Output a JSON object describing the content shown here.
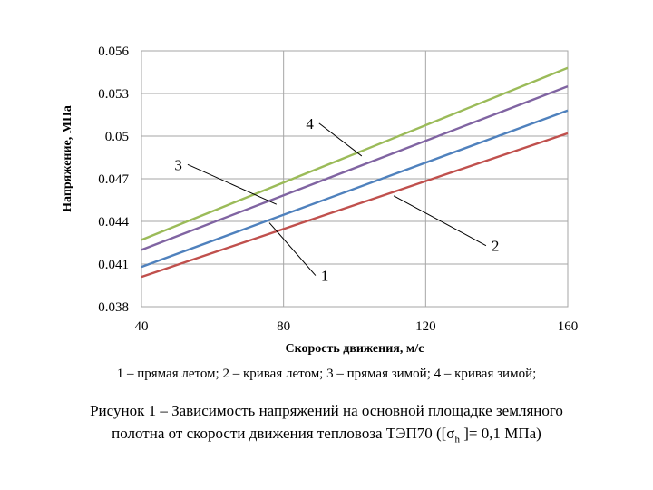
{
  "chart_data": {
    "type": "line",
    "xlabel": "Скорость движения, м/с",
    "ylabel": "Напряжение, МПа",
    "xlim": [
      40,
      160
    ],
    "ylim": [
      0.038,
      0.056
    ],
    "x_ticks": [
      "40",
      "80",
      "120",
      "160"
    ],
    "y_ticks": [
      "0.038",
      "0.041",
      "0.044",
      "0.047",
      "0.05",
      "0.053",
      "0.056"
    ],
    "x_tick_values": [
      40,
      80,
      120,
      160
    ],
    "y_tick_values": [
      0.038,
      0.041,
      0.044,
      0.047,
      0.05,
      0.053,
      0.056
    ],
    "grid": true,
    "series": [
      {
        "name": "1",
        "x": [
          40,
          160
        ],
        "y": [
          0.0408,
          0.0518
        ],
        "color": "#4f81bd"
      },
      {
        "name": "2",
        "x": [
          40,
          160
        ],
        "y": [
          0.0401,
          0.0502
        ],
        "color": "#c0504d"
      },
      {
        "name": "3",
        "x": [
          40,
          160
        ],
        "y": [
          0.042,
          0.0535
        ],
        "color": "#8064a2"
      },
      {
        "name": "4",
        "x": [
          40,
          160
        ],
        "y": [
          0.0427,
          0.0548
        ],
        "color": "#9bbb59"
      }
    ],
    "callouts": [
      {
        "label": "1",
        "x": 76,
        "y": 0.0439,
        "lx": 89,
        "ly": 0.0402
      },
      {
        "label": "2",
        "x": 111,
        "y": 0.0458,
        "lx": 137,
        "ly": 0.0423
      },
      {
        "label": "3",
        "x": 78,
        "y": 0.0452,
        "lx": 53,
        "ly": 0.048
      },
      {
        "label": "4",
        "x": 102,
        "y": 0.0486,
        "lx": 90,
        "ly": 0.0509
      }
    ]
  },
  "legend_text": "1 – прямая летом; 2 – кривая летом; 3 – прямая зимой; 4 – кривая зимой;",
  "caption": {
    "line1": "Рисунок 1 – Зависимость напряжений на основной площадке земляного",
    "line2_prefix": "полотна от скорости движения тепловоза ТЭП70 ([σ",
    "line2_sub": "h",
    "line2_suffix": " ]= 0,1 МПа)"
  }
}
